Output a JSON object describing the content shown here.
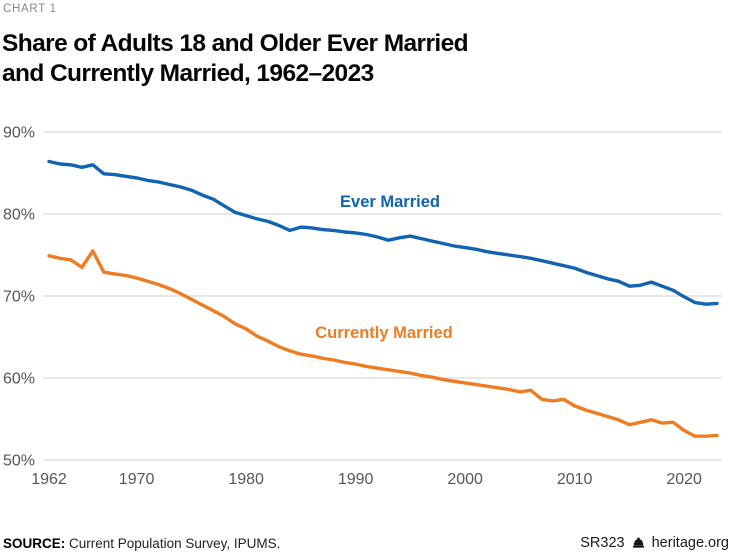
{
  "header": {
    "kicker": "CHART 1",
    "title_line1": "Share of Adults 18 and Older Ever Married",
    "title_line2": "and Currently Married, 1962–2023"
  },
  "footer": {
    "source_label": "SOURCE:",
    "source_text": " Current Population Survey, IPUMS.",
    "report_id": "SR323",
    "site": "heritage.org",
    "logo_icon": "heritage-liberty-bell"
  },
  "colors": {
    "ever_married": "#1263b2",
    "currently_married": "#ee7c22",
    "grid": "#dadada",
    "axis_text": "#55565c",
    "footer_text": "#1a1a1a"
  },
  "chart_data": {
    "type": "line",
    "title": "Share of Adults 18 and Older Ever Married and Currently Married, 1962–2023",
    "xlabel": "",
    "ylabel": "",
    "xlim": [
      1962,
      2023
    ],
    "ylim": [
      50,
      90
    ],
    "grid": "horizontal",
    "legend_position": "inline-labels",
    "x": [
      1962,
      1963,
      1964,
      1965,
      1966,
      1967,
      1968,
      1969,
      1970,
      1971,
      1972,
      1973,
      1974,
      1975,
      1976,
      1977,
      1978,
      1979,
      1980,
      1981,
      1982,
      1983,
      1984,
      1985,
      1986,
      1987,
      1988,
      1989,
      1990,
      1991,
      1992,
      1993,
      1994,
      1995,
      1996,
      1997,
      1998,
      1999,
      2000,
      2001,
      2002,
      2003,
      2004,
      2005,
      2006,
      2007,
      2008,
      2009,
      2010,
      2011,
      2012,
      2013,
      2014,
      2015,
      2016,
      2017,
      2018,
      2019,
      2020,
      2021,
      2022,
      2023
    ],
    "series": [
      {
        "name": "Ever Married",
        "color": "#1263b2",
        "values": [
          86.4,
          86.1,
          86.0,
          85.7,
          86.0,
          84.9,
          84.8,
          84.6,
          84.4,
          84.1,
          83.9,
          83.6,
          83.3,
          82.9,
          82.3,
          81.8,
          81.0,
          80.2,
          79.8,
          79.4,
          79.1,
          78.6,
          78.0,
          78.4,
          78.3,
          78.1,
          78.0,
          77.8,
          77.7,
          77.5,
          77.2,
          76.8,
          77.1,
          77.3,
          77.0,
          76.7,
          76.4,
          76.1,
          75.9,
          75.7,
          75.4,
          75.2,
          75.0,
          74.8,
          74.6,
          74.3,
          74.0,
          73.7,
          73.4,
          72.9,
          72.5,
          72.1,
          71.8,
          71.2,
          71.3,
          71.7,
          71.2,
          70.7,
          69.9,
          69.2,
          69.0,
          69.1
        ]
      },
      {
        "name": "Currently Married",
        "color": "#ee7c22",
        "values": [
          74.9,
          74.6,
          74.4,
          73.5,
          75.5,
          72.9,
          72.7,
          72.5,
          72.2,
          71.8,
          71.4,
          70.9,
          70.3,
          69.6,
          68.9,
          68.2,
          67.5,
          66.6,
          66.0,
          65.1,
          64.5,
          63.8,
          63.3,
          62.9,
          62.7,
          62.4,
          62.2,
          61.9,
          61.7,
          61.4,
          61.2,
          61.0,
          60.8,
          60.6,
          60.3,
          60.1,
          59.8,
          59.6,
          59.4,
          59.2,
          59.0,
          58.8,
          58.6,
          58.3,
          58.5,
          57.4,
          57.2,
          57.4,
          56.6,
          56.1,
          55.7,
          55.3,
          54.9,
          54.3,
          54.6,
          54.9,
          54.5,
          54.6,
          53.6,
          52.9,
          52.9,
          53.0
        ]
      }
    ],
    "yticks": [
      {
        "label": "90%",
        "value": 90
      },
      {
        "label": "80%",
        "value": 80
      },
      {
        "label": "70%",
        "value": 70
      },
      {
        "label": "60%",
        "value": 60
      },
      {
        "label": "50%",
        "value": 50
      }
    ],
    "xticks": [
      {
        "label": "1962",
        "value": 1962
      },
      {
        "label": "1970",
        "value": 1970
      },
      {
        "label": "1980",
        "value": 1980
      },
      {
        "label": "1990",
        "value": 1990
      },
      {
        "label": "2000",
        "value": 2000
      },
      {
        "label": "2010",
        "value": 2010
      },
      {
        "label": "2020",
        "value": 2020
      }
    ]
  }
}
